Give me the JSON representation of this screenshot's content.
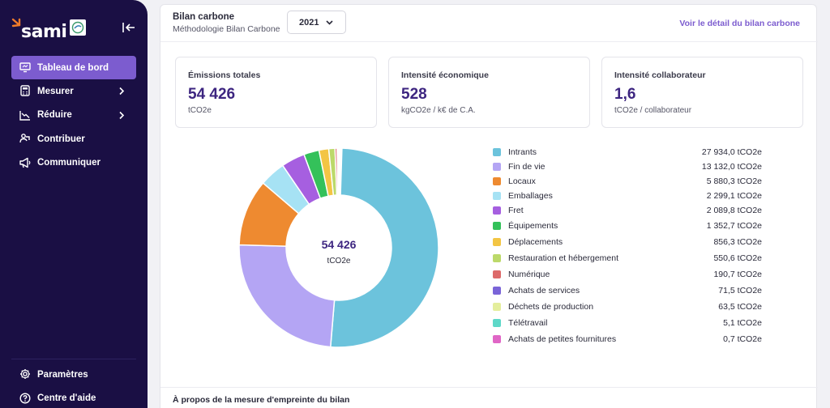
{
  "brand": {
    "name": "sami",
    "accent": "#7c5ccf",
    "sidebar_bg": "#1a0f44",
    "logo_orange": "#f07b2a",
    "kpi_value_color": "#3d2580"
  },
  "sidebar": {
    "items": [
      {
        "label": "Tableau de bord",
        "icon": "monitor-icon",
        "active": true
      },
      {
        "label": "Mesurer",
        "icon": "calculator-icon",
        "has_children": true
      },
      {
        "label": "Réduire",
        "icon": "trending-down-icon",
        "has_children": true
      },
      {
        "label": "Contribuer",
        "icon": "handshake-icon"
      },
      {
        "label": "Communiquer",
        "icon": "megaphone-icon"
      }
    ],
    "bottom_items": [
      {
        "label": "Paramètres",
        "icon": "gear-icon"
      },
      {
        "label": "Centre d'aide",
        "icon": "help-circle-icon"
      }
    ]
  },
  "header": {
    "title": "Bilan carbone",
    "subtitle": "Méthodologie Bilan Carbone",
    "year": "2021",
    "detail_link": "Voir le détail du bilan carbone"
  },
  "kpis": [
    {
      "label": "Émissions totales",
      "value": "54 426",
      "unit": "tCO2e"
    },
    {
      "label": "Intensité économique",
      "value": "528",
      "unit": "kgCO2e / k€ de C.A."
    },
    {
      "label": "Intensité collaborateur",
      "value": "1,6",
      "unit": "tCO2e / collaborateur"
    }
  ],
  "chart_data": {
    "type": "pie",
    "donut": true,
    "center_value": "54 426",
    "center_unit": "tCO2e",
    "categories": [
      "Intrants",
      "Fin de vie",
      "Locaux",
      "Emballages",
      "Fret",
      "Équipements",
      "Déplacements",
      "Restauration et hébergement",
      "Numérique",
      "Achats de services",
      "Déchets de production",
      "Télétravail",
      "Achats de petites fournitures"
    ],
    "values": [
      27934.0,
      13132.0,
      5880.3,
      2299.1,
      2089.8,
      1352.7,
      856.3,
      550.6,
      190.7,
      71.5,
      63.5,
      5.1,
      0.7
    ],
    "value_labels": [
      "27 934,0 tCO2e",
      "13 132,0 tCO2e",
      "5 880,3 tCO2e",
      "2 299,1 tCO2e",
      "2 089,8 tCO2e",
      "1 352,7 tCO2e",
      "856,3 tCO2e",
      "550,6 tCO2e",
      "190,7 tCO2e",
      "71,5 tCO2e",
      "63,5 tCO2e",
      "5,1 tCO2e",
      "0,7 tCO2e"
    ],
    "colors": [
      "#6cc3dc",
      "#b4a5f4",
      "#ee8a30",
      "#a6e2f4",
      "#a65fe0",
      "#34c15a",
      "#f3c544",
      "#bcd96a",
      "#dd6a6a",
      "#7a64d8",
      "#e4ee9c",
      "#5ed8c8",
      "#e066c6"
    ],
    "legend_position": "right"
  },
  "footer": {
    "text": "À propos de la mesure d'empreinte du bilan"
  }
}
